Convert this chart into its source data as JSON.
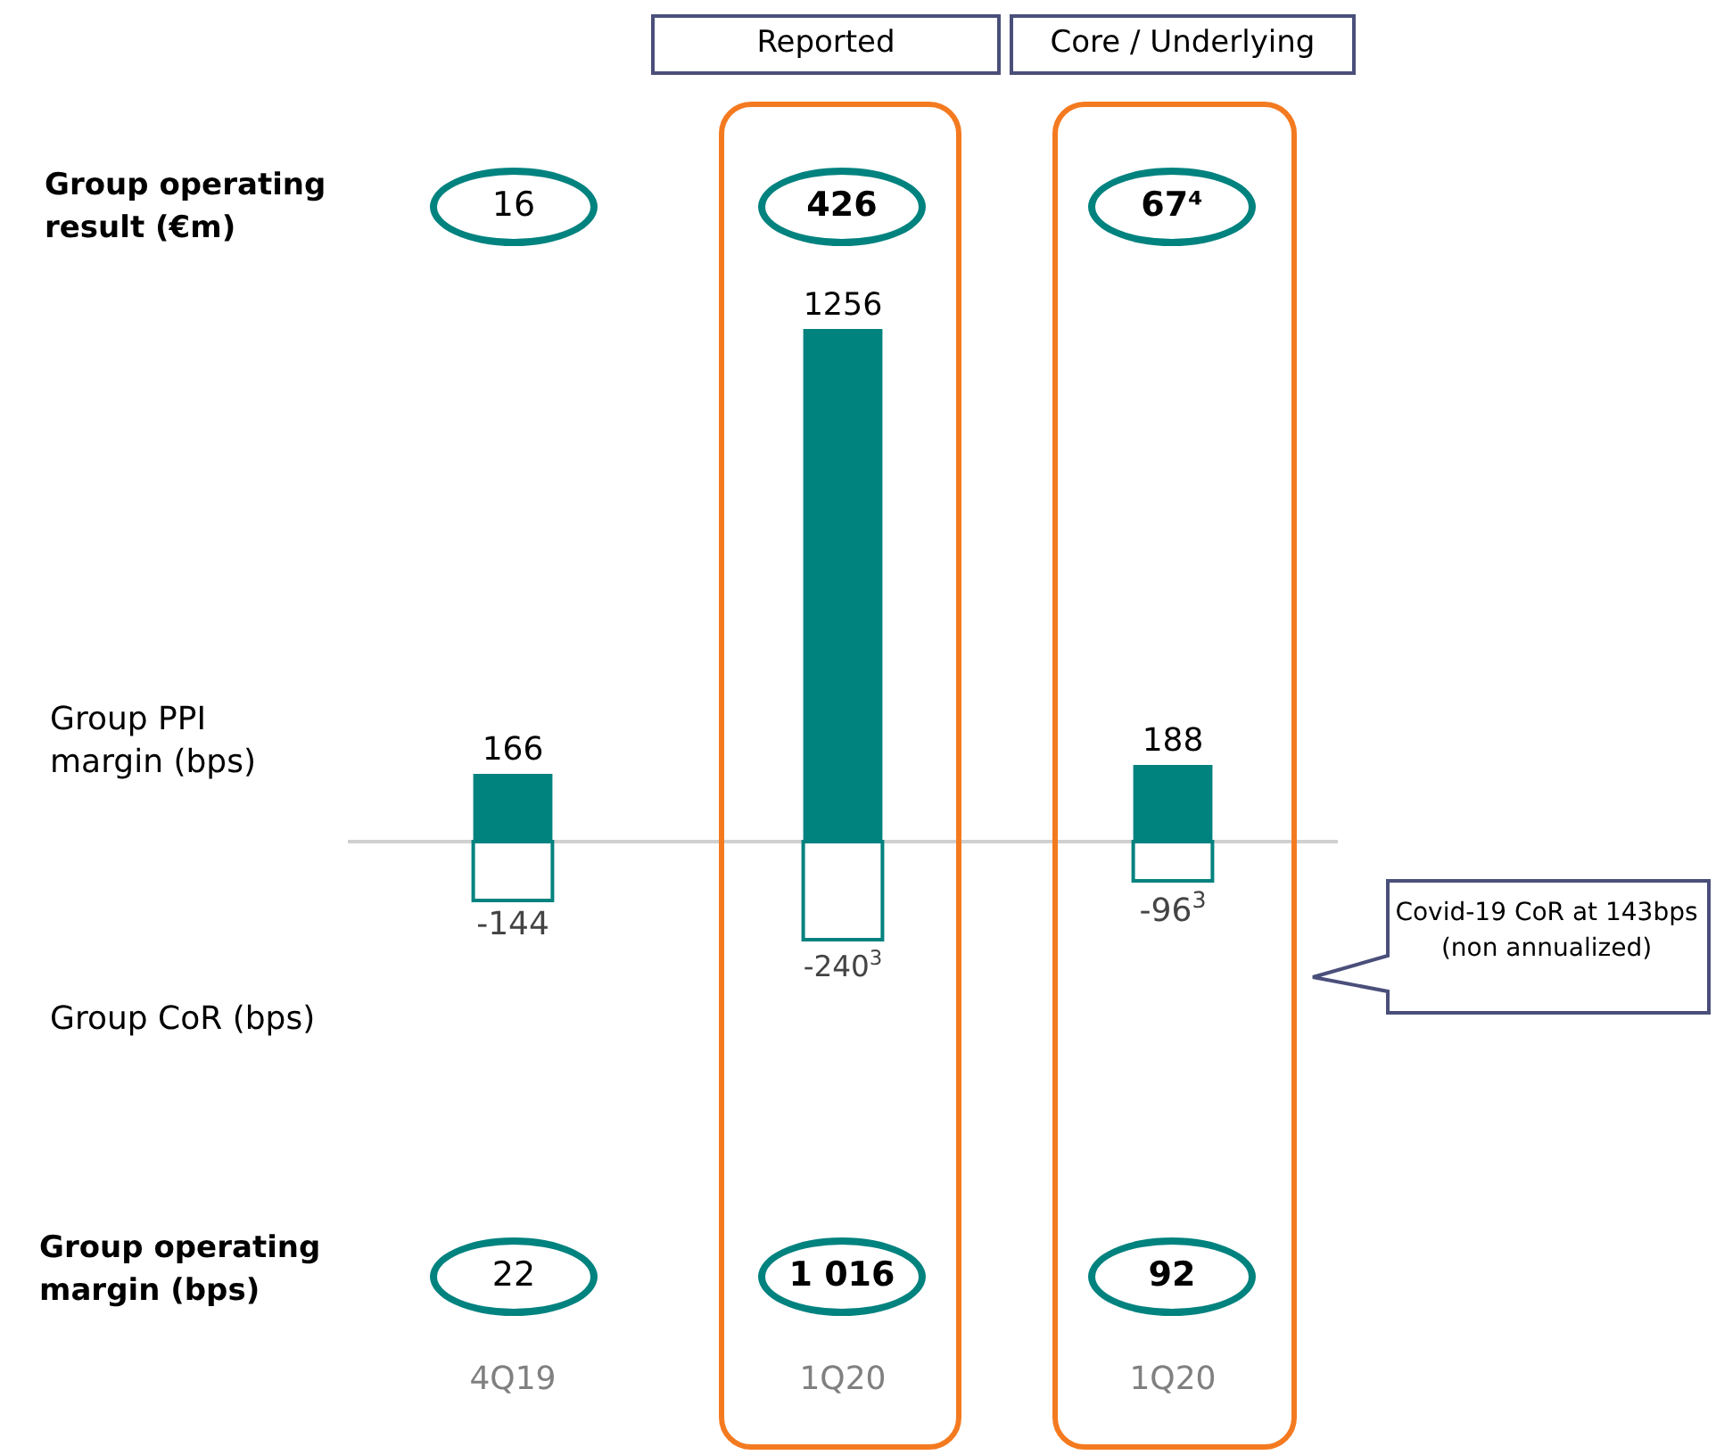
{
  "chart_data": {
    "type": "bar",
    "stacked": true,
    "categories": [
      "4Q19",
      "1Q20",
      "1Q20"
    ],
    "series": [
      {
        "color": "#00827f",
        "values": [
          166,
          1256,
          188
        ]
      },
      {
        "color": "#00827f",
        "values": [
          -144,
          -240,
          -96
        ],
        "value_labels": [
          "-144",
          "-240$^{3}$",
          "-96$^{3}$"
        ]
      }
    ],
    "data_labels": true,
    "tick_labels": "x",
    "grid": false,
    "annotations": [
      "Group operating result (€m)",
      "Group operating margin (bps)",
      "Reported",
      "Core / Underlying",
      "16",
      "426",
      "67⁴",
      "22",
      "1 016",
      "92",
      "Covid-19 CoR at 143bps (non annualized)",
      "Group PPI margin (bps)",
      "Group CoR (bps)"
    ]
  }
}
